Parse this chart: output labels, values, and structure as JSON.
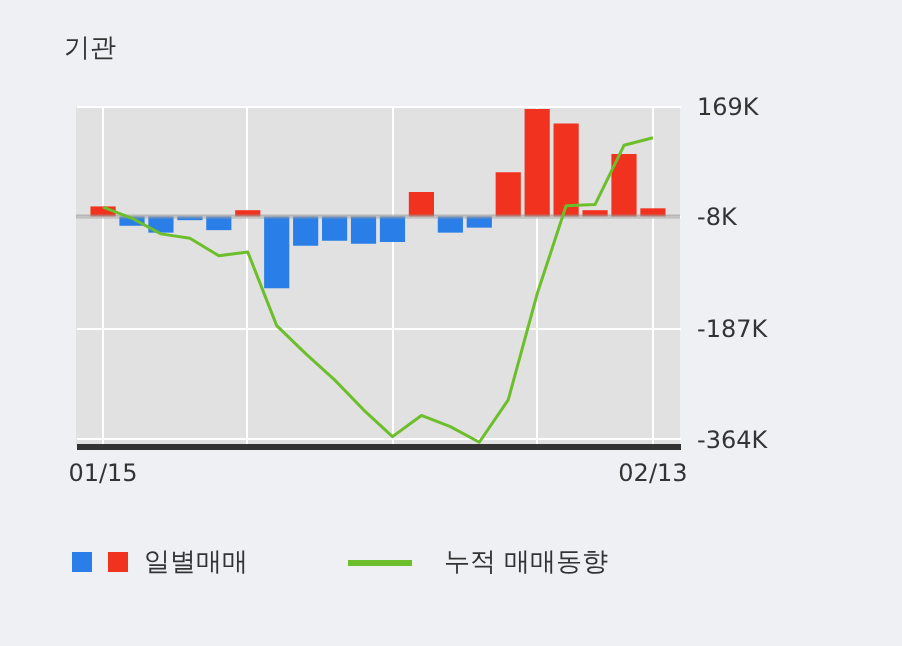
{
  "chart_data": {
    "type": "bar",
    "title": "기관",
    "categories": [
      "01/15",
      null,
      null,
      null,
      null,
      null,
      null,
      null,
      null,
      null,
      null,
      null,
      null,
      null,
      null,
      null,
      null,
      null,
      null,
      "02/13"
    ],
    "series": [
      {
        "name": "일별매매",
        "base": [
          -8,
          -8,
          -8,
          -8,
          -8,
          -8,
          -8,
          -8,
          -8,
          -8,
          -8,
          -8,
          -8,
          -8,
          -8,
          -8,
          -8,
          -8,
          -8,
          -8
        ],
        "values": [
          16,
          -15,
          -26,
          -6,
          -22,
          10,
          -115,
          -47,
          -39,
          -44,
          -41,
          39,
          -26,
          -18,
          71,
          172,
          149,
          10,
          100,
          13
        ],
        "colors": [
          "#f0321e",
          "#2a7ee8",
          "#2a7ee8",
          "#2a7ee8",
          "#2a7ee8",
          "#f0321e",
          "#2a7ee8",
          "#2a7ee8",
          "#2a7ee8",
          "#2a7ee8",
          "#2a7ee8",
          "#f0321e",
          "#2a7ee8",
          "#2a7ee8",
          "#f0321e",
          "#f0321e",
          "#f0321e",
          "#f0321e",
          "#f0321e",
          "#f0321e"
        ]
      },
      {
        "name": "누적 매매동향",
        "type": "line",
        "color": "#6cbf2a",
        "values": [
          7,
          -11,
          -36,
          -43,
          -71,
          -65,
          -183,
          -228,
          -270,
          -318,
          -361,
          -327,
          -345,
          -370,
          -302,
          -132,
          9,
          11,
          106,
          118
        ]
      }
    ],
    "ylim": [
      -376,
      169
    ],
    "yticks": [
      {
        "value": 169,
        "label": "169K"
      },
      {
        "value": -8,
        "label": "-8K"
      },
      {
        "value": -187,
        "label": "-187K"
      },
      {
        "value": -364,
        "label": "-364K"
      }
    ],
    "ref_lines": [
      {
        "axis": "y",
        "value": -8,
        "color": "#999999"
      }
    ],
    "grid": true,
    "legend": "bottom"
  }
}
